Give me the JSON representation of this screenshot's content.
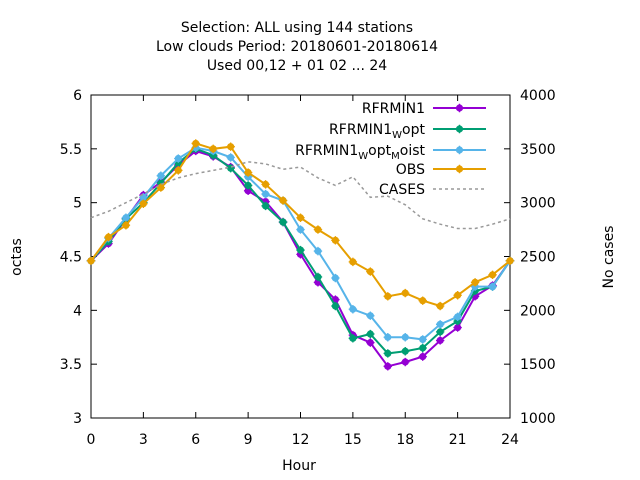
{
  "title_lines": [
    "Selection: ALL using   144 stations",
    "Low clouds   Period: 20180601-20180614",
    "Used  00,12  + 01 02 ... 24"
  ],
  "chart_data": {
    "type": "line",
    "xlabel": "Hour",
    "ylabel": "octas",
    "y2label": "No cases",
    "xlim": [
      0,
      24
    ],
    "ylim": [
      3,
      6
    ],
    "y2lim": [
      1000,
      4000
    ],
    "xticks": [
      "0",
      "3",
      "6",
      "9",
      "12",
      "15",
      "18",
      "21",
      "24"
    ],
    "yticks": [
      "3",
      "3.5",
      "4",
      "4.5",
      "5",
      "5.5",
      "6"
    ],
    "y2ticks": [
      "1000",
      "1500",
      "2000",
      "2500",
      "3000",
      "3500",
      "4000"
    ],
    "grid": false,
    "legend_position": "top-right",
    "x": [
      0,
      1,
      2,
      3,
      4,
      5,
      6,
      7,
      8,
      9,
      10,
      11,
      12,
      13,
      14,
      15,
      16,
      17,
      18,
      19,
      20,
      21,
      22,
      23,
      24
    ],
    "series": [
      {
        "name": "RFRMIN1",
        "legend_main": "RFRMIN1",
        "legend_sub": "",
        "legend_rest": "",
        "color": "#9400d3",
        "axis": "y",
        "style": "line-points",
        "values": [
          4.46,
          4.62,
          4.85,
          5.07,
          5.19,
          5.35,
          5.48,
          5.43,
          5.33,
          5.11,
          5.01,
          4.82,
          4.52,
          4.26,
          4.1,
          3.77,
          3.7,
          3.48,
          3.52,
          3.57,
          3.72,
          3.84,
          4.13,
          4.23,
          4.46
        ]
      },
      {
        "name": "RFRMIN1_Wopt",
        "legend_main": "RFRMIN1",
        "legend_sub": "W",
        "legend_rest": "opt",
        "color": "#009e73",
        "axis": "y",
        "style": "line-points",
        "values": [
          4.46,
          4.64,
          4.85,
          5.0,
          5.18,
          5.37,
          5.5,
          5.44,
          5.32,
          5.16,
          4.97,
          4.82,
          4.56,
          4.31,
          4.04,
          3.74,
          3.78,
          3.6,
          3.62,
          3.65,
          3.8,
          3.9,
          4.18,
          4.22,
          4.46
        ]
      },
      {
        "name": "RFRMIN1_Wopt_Moist",
        "legend_main": "RFRMIN1",
        "legend_sub": "W",
        "legend_rest": "opt",
        "legend_sub2": "M",
        "legend_rest2": "oist",
        "color": "#56b4e9",
        "axis": "y",
        "style": "line-points",
        "values": [
          4.46,
          4.67,
          4.86,
          5.05,
          5.25,
          5.41,
          5.51,
          5.48,
          5.42,
          5.24,
          5.08,
          5.02,
          4.75,
          4.55,
          4.3,
          4.01,
          3.95,
          3.75,
          3.75,
          3.73,
          3.87,
          3.94,
          4.22,
          4.22,
          4.46
        ]
      },
      {
        "name": "OBS",
        "legend_main": "OBS",
        "legend_sub": "",
        "legend_rest": "",
        "color": "#e69f00",
        "axis": "y",
        "style": "line-points",
        "values": [
          4.46,
          4.68,
          4.79,
          4.99,
          5.14,
          5.3,
          5.55,
          5.5,
          5.52,
          5.28,
          5.17,
          5.02,
          4.86,
          4.75,
          4.65,
          4.45,
          4.36,
          4.13,
          4.16,
          4.09,
          4.04,
          4.14,
          4.26,
          4.33,
          4.46
        ]
      },
      {
        "name": "CASES",
        "legend_main": "CASES",
        "legend_sub": "",
        "legend_rest": "",
        "color": "#999999",
        "axis": "y2",
        "style": "dashed",
        "values": [
          2860,
          2920,
          3000,
          3080,
          3170,
          3230,
          3270,
          3300,
          3330,
          3380,
          3360,
          3310,
          3330,
          3230,
          3160,
          3240,
          3050,
          3060,
          2980,
          2850,
          2800,
          2760,
          2760,
          2800,
          2850
        ]
      }
    ]
  }
}
